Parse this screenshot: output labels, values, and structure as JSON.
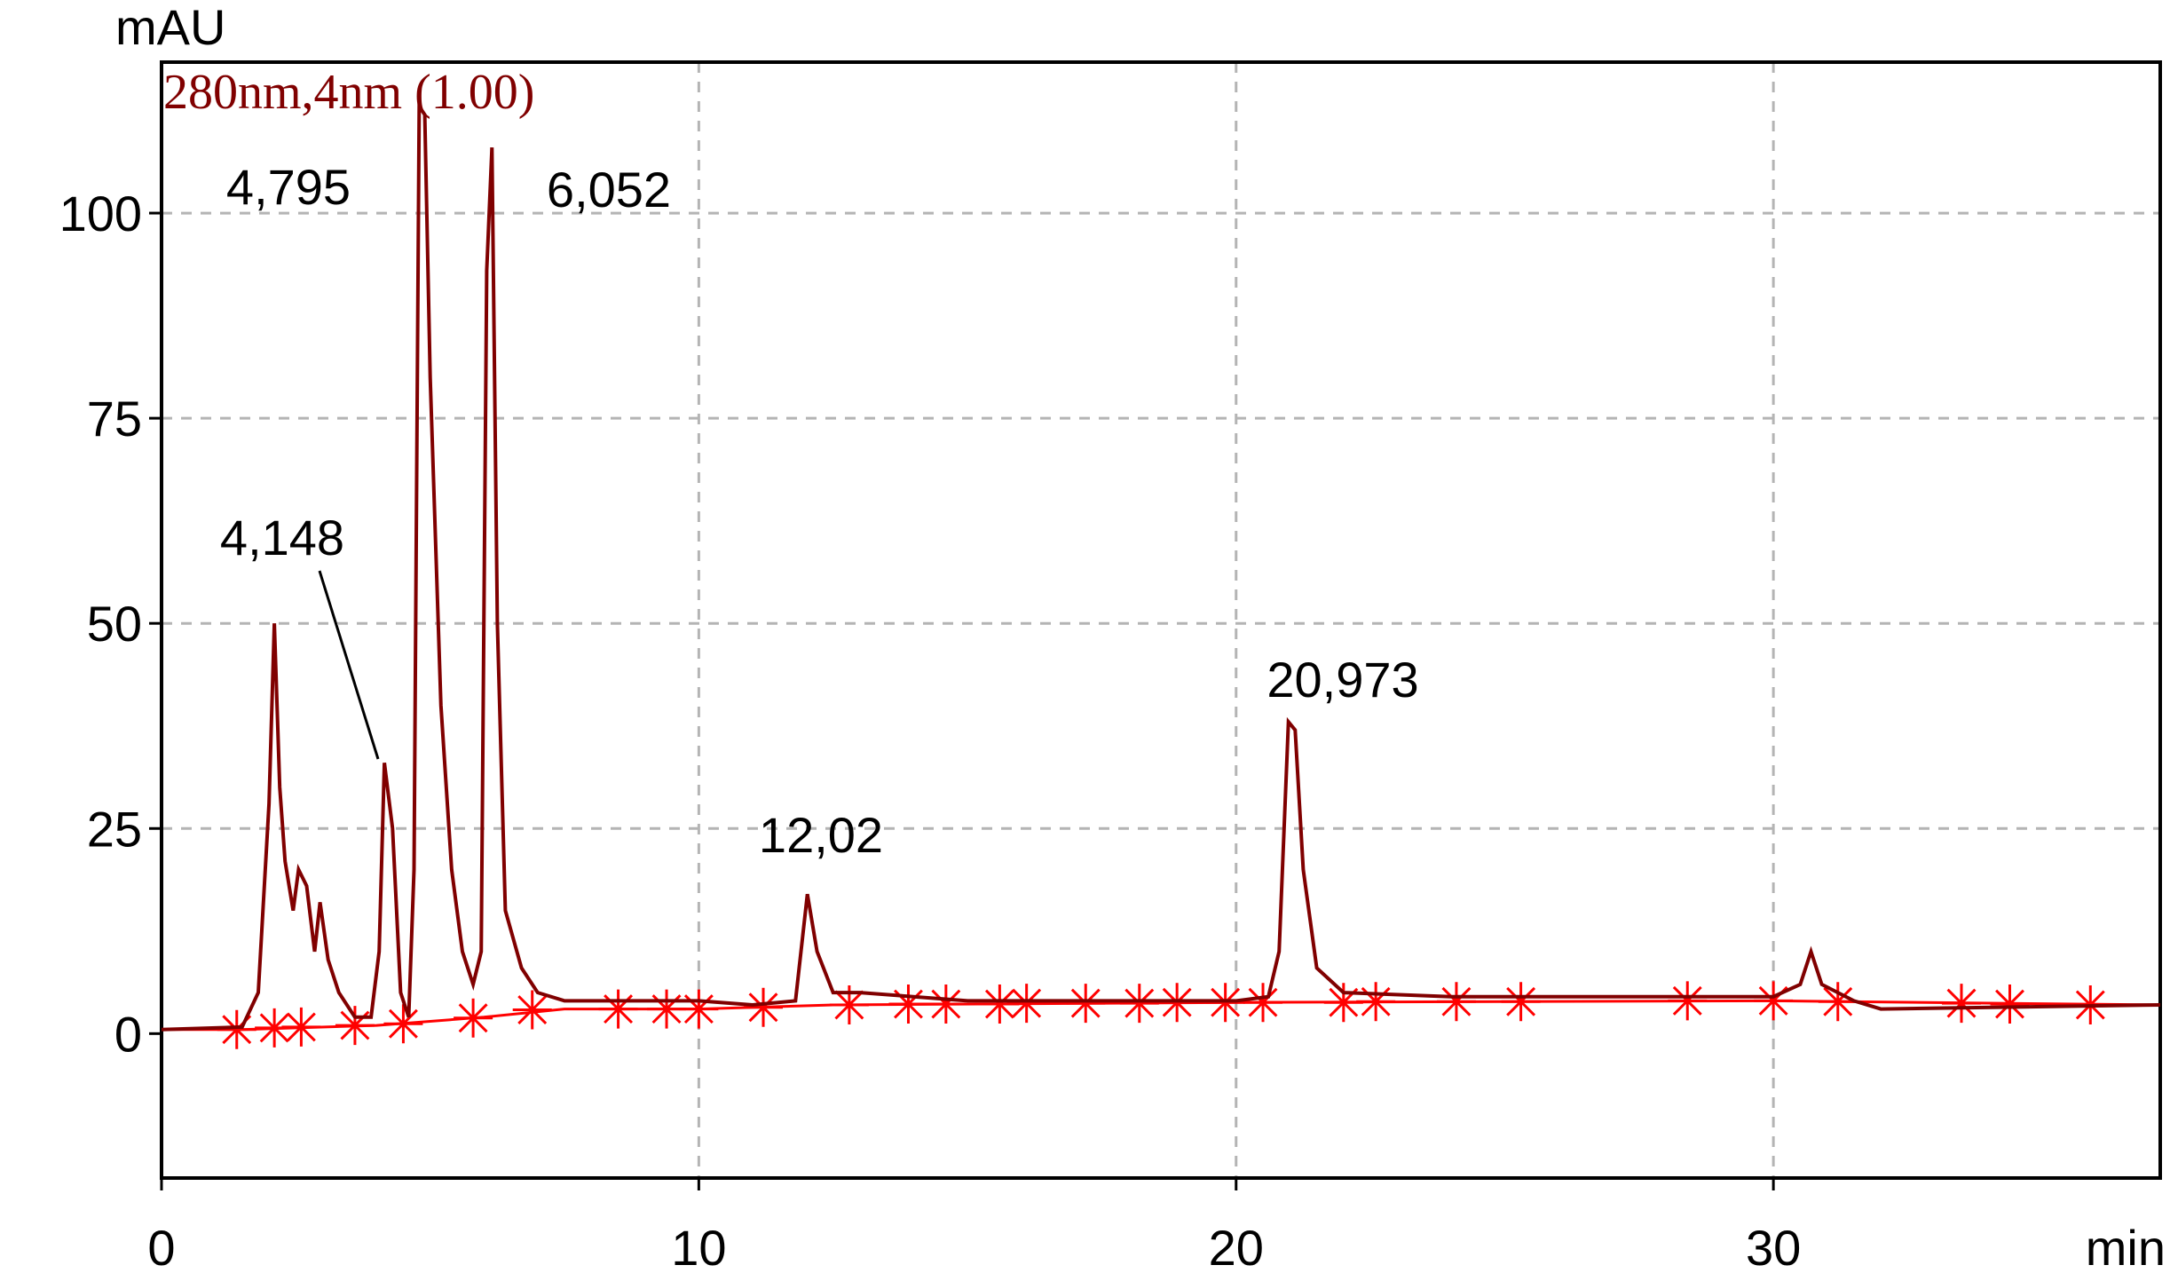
{
  "chart_data": {
    "type": "line",
    "y_label": "mAU",
    "x_label": "min",
    "xlim": [
      0,
      37.2
    ],
    "ylim": [
      -17.6,
      118.4
    ],
    "xticks": [
      0,
      10,
      20,
      30
    ],
    "yticks": [
      0,
      25,
      50,
      75,
      100
    ],
    "grid": true,
    "series": [
      {
        "name": "280nm,4nm (1.00)",
        "color": "#800000",
        "x": [
          0,
          1.5,
          1.8,
          2.0,
          2.1,
          2.2,
          2.3,
          2.45,
          2.55,
          2.7,
          2.85,
          2.95,
          3.1,
          3.3,
          3.6,
          3.9,
          4.05,
          4.148,
          4.3,
          4.45,
          4.6,
          4.7,
          4.795,
          4.9,
          5.0,
          5.2,
          5.4,
          5.6,
          5.8,
          5.95,
          6.052,
          6.15,
          6.25,
          6.4,
          6.7,
          7.0,
          7.5,
          9,
          10,
          11,
          11.8,
          12.02,
          12.2,
          12.5,
          13,
          15,
          18,
          20,
          20.6,
          20.8,
          20.973,
          21.1,
          21.25,
          21.5,
          22,
          24,
          26,
          30,
          30.5,
          30.7,
          30.9,
          31.5,
          32,
          37.2
        ],
        "values": [
          0.5,
          0.8,
          5,
          28,
          50,
          30,
          21,
          15,
          20,
          18,
          10,
          16,
          9,
          5,
          2,
          2,
          10,
          33,
          25,
          5,
          2,
          20,
          113,
          112,
          80,
          40,
          20,
          10,
          6,
          10,
          93,
          108,
          50,
          15,
          8,
          5,
          4,
          4,
          4,
          3.5,
          4,
          17,
          10,
          5,
          5,
          4,
          4,
          4,
          4.5,
          10,
          38,
          37,
          20,
          8,
          5,
          4.5,
          4.5,
          4.5,
          6,
          10,
          6,
          4,
          3,
          3.5
        ]
      },
      {
        "color": "#ff0000",
        "x": [
          0,
          1.5,
          4,
          6,
          7.5,
          10,
          12.5,
          20,
          30,
          37.2
        ],
        "values": [
          0.5,
          0.5,
          1,
          2,
          3,
          3,
          3.5,
          3.8,
          4,
          3.5
        ],
        "marker_x": [
          1.4,
          2.1,
          2.6,
          3.6,
          4.5,
          5.8,
          6.9,
          8.5,
          9.4,
          10.0,
          11.2,
          12.8,
          13.9,
          14.6,
          15.6,
          16.1,
          17.2,
          18.2,
          18.9,
          19.8,
          20.5,
          22.0,
          22.6,
          24.1,
          25.3,
          28.4,
          30.0,
          31.2,
          33.5,
          34.4,
          35.9
        ],
        "marker_values": [
          0.5,
          0.7,
          0.8,
          1.0,
          1.2,
          1.9,
          2.9,
          3.0,
          3.0,
          3.0,
          3.2,
          3.5,
          3.6,
          3.6,
          3.6,
          3.7,
          3.7,
          3.7,
          3.8,
          3.8,
          3.8,
          3.8,
          3.9,
          3.9,
          3.9,
          4.0,
          4.0,
          3.9,
          3.7,
          3.6,
          3.5
        ]
      }
    ],
    "annotations": [
      {
        "value": 4.795,
        "label": "4,795"
      },
      {
        "value": 6.052,
        "label": "6,052"
      },
      {
        "value": 4.148,
        "label": "4,148"
      },
      {
        "value": 12.02,
        "label": "12,02"
      },
      {
        "value": 20.973,
        "label": "20,973"
      }
    ]
  }
}
